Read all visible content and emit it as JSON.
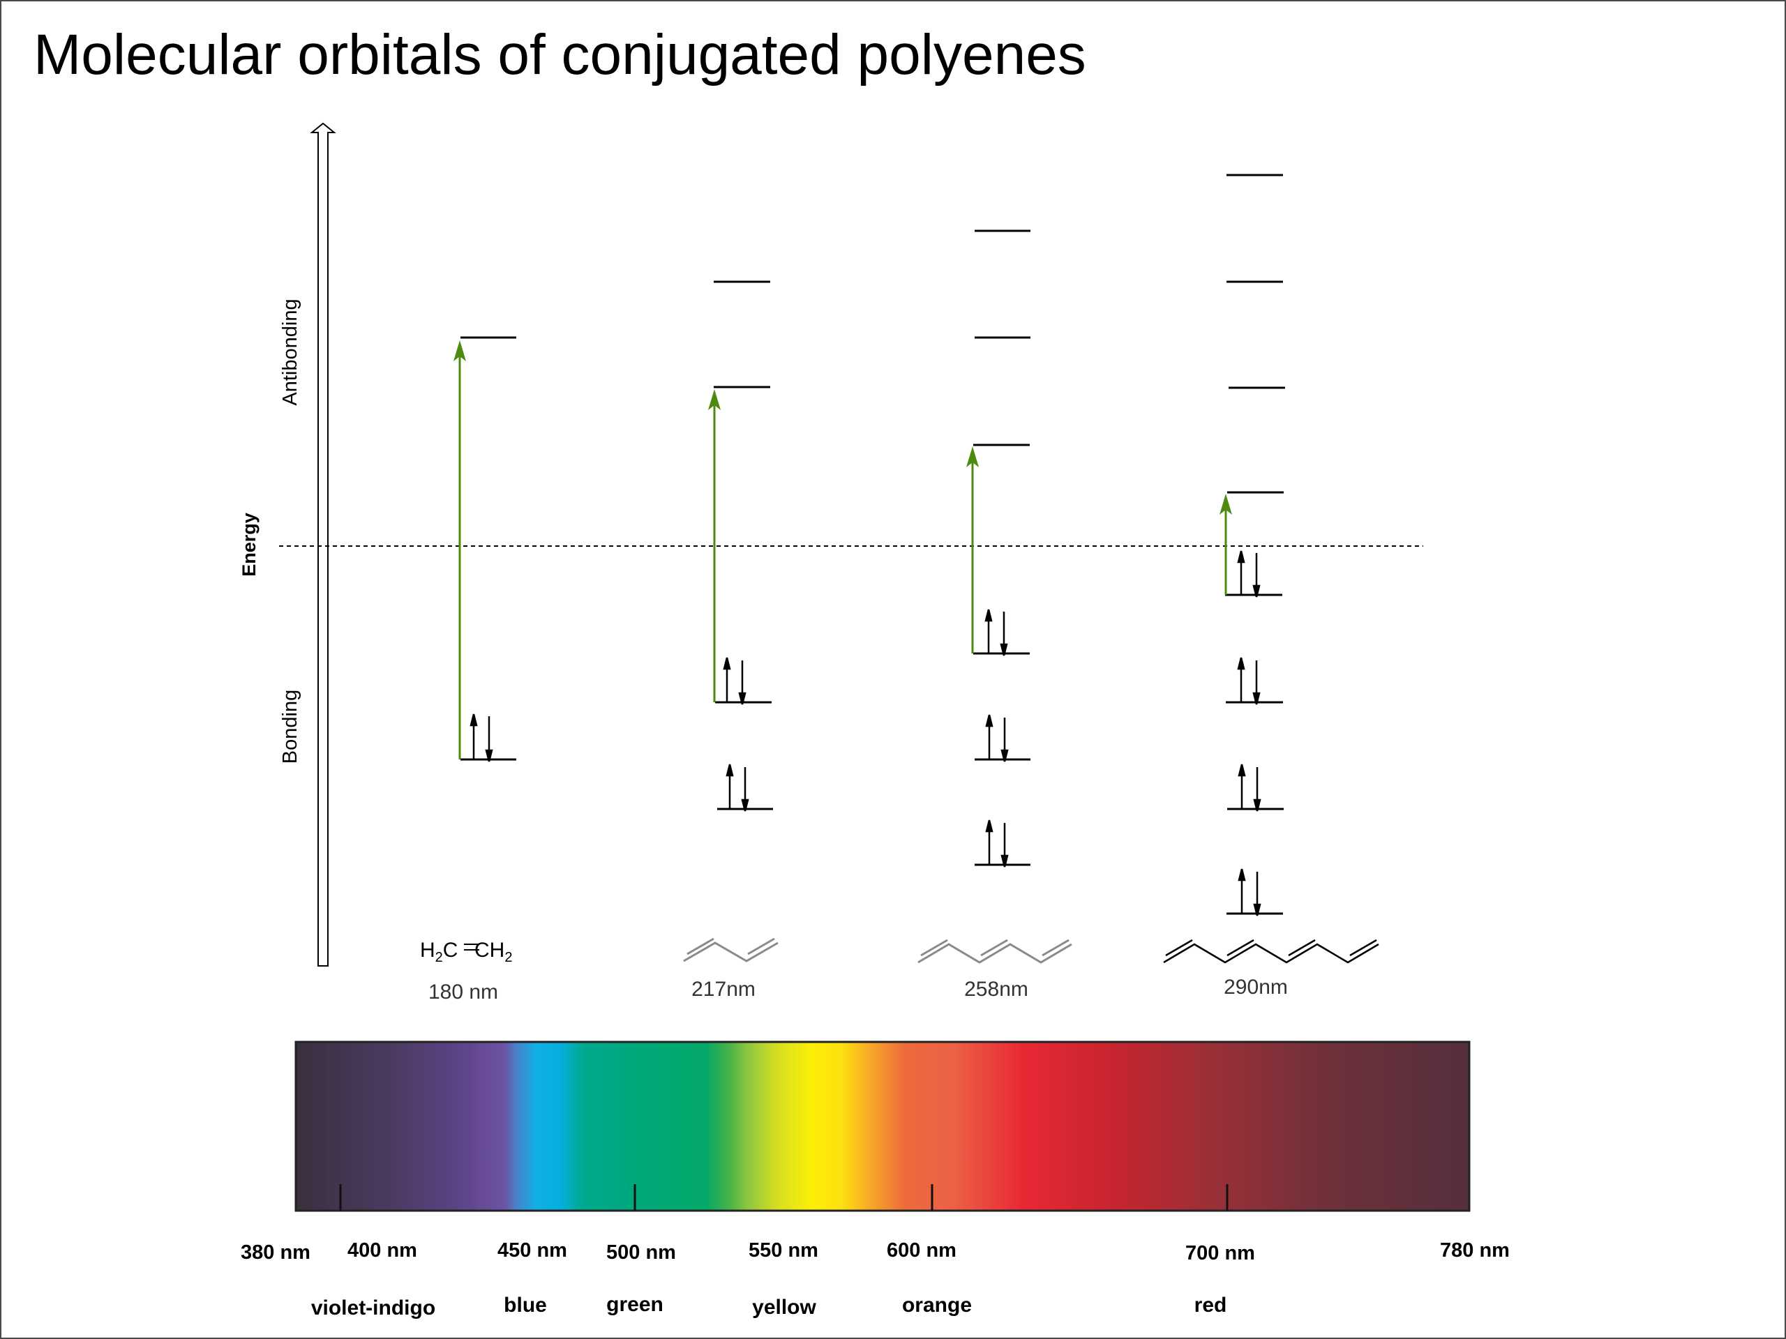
{
  "slide": {
    "title": "Molecular orbitals of conjugated polyenes"
  },
  "axis": {
    "energy_label": "Energy",
    "antibonding_label": "Antibonding",
    "bonding_label": "Bonding"
  },
  "molecules": [
    {
      "name": "H2C=CH2",
      "structure": "ethylene",
      "wavelength": "180",
      "unit": "nm"
    },
    {
      "name": "",
      "structure": "butadiene",
      "wavelength": "217",
      "unit": "nm"
    },
    {
      "name": "",
      "structure": "hexatriene",
      "wavelength": "258",
      "unit": "nm"
    },
    {
      "name": "",
      "structure": "octatetraene",
      "wavelength": "290",
      "unit": "nm"
    }
  ],
  "spectrum": {
    "ticks": [
      {
        "label": "380 nm"
      },
      {
        "label": "400 nm"
      },
      {
        "label": "450 nm"
      },
      {
        "label": "500 nm"
      },
      {
        "label": "550 nm"
      },
      {
        "label": "600 nm"
      },
      {
        "label": "700 nm"
      },
      {
        "label": "780 nm"
      }
    ],
    "colors": [
      {
        "label": "violet-indigo"
      },
      {
        "label": "blue"
      },
      {
        "label": "green"
      },
      {
        "label": "yellow"
      },
      {
        "label": "orange"
      },
      {
        "label": "red"
      }
    ]
  },
  "style": {
    "transition_color": "#4f8a10",
    "level_color": "#000000"
  }
}
